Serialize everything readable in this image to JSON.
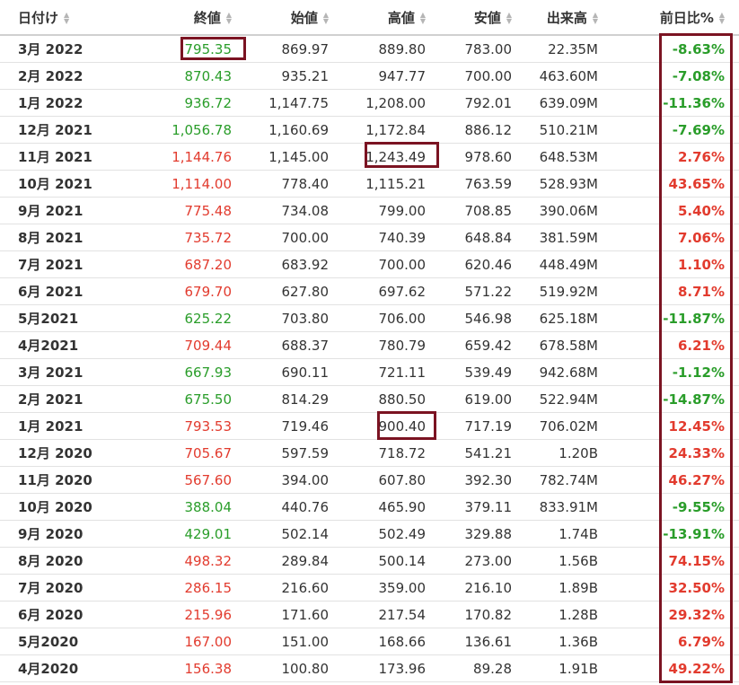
{
  "headers": [
    {
      "label": "日付け"
    },
    {
      "label": "終値"
    },
    {
      "label": "始値"
    },
    {
      "label": "高値"
    },
    {
      "label": "安値"
    },
    {
      "label": "出来高"
    },
    {
      "label": "前日比%"
    }
  ],
  "rows": [
    {
      "date": "3月 2022",
      "close": "795.35",
      "close_color": "green",
      "open": "869.97",
      "high": "889.80",
      "low": "783.00",
      "volume": "22.35M",
      "change": "-8.63%",
      "change_color": "green"
    },
    {
      "date": "2月 2022",
      "close": "870.43",
      "close_color": "green",
      "open": "935.21",
      "high": "947.77",
      "low": "700.00",
      "volume": "463.60M",
      "change": "-7.08%",
      "change_color": "green"
    },
    {
      "date": "1月 2022",
      "close": "936.72",
      "close_color": "green",
      "open": "1,147.75",
      "high": "1,208.00",
      "low": "792.01",
      "volume": "639.09M",
      "change": "-11.36%",
      "change_color": "green"
    },
    {
      "date": "12月 2021",
      "close": "1,056.78",
      "close_color": "green",
      "open": "1,160.69",
      "high": "1,172.84",
      "low": "886.12",
      "volume": "510.21M",
      "change": "-7.69%",
      "change_color": "green"
    },
    {
      "date": "11月 2021",
      "close": "1,144.76",
      "close_color": "red",
      "open": "1,145.00",
      "high": "1,243.49",
      "low": "978.60",
      "volume": "648.53M",
      "change": "2.76%",
      "change_color": "red"
    },
    {
      "date": "10月 2021",
      "close": "1,114.00",
      "close_color": "red",
      "open": "778.40",
      "high": "1,115.21",
      "low": "763.59",
      "volume": "528.93M",
      "change": "43.65%",
      "change_color": "red"
    },
    {
      "date": "9月 2021",
      "close": "775.48",
      "close_color": "red",
      "open": "734.08",
      "high": "799.00",
      "low": "708.85",
      "volume": "390.06M",
      "change": "5.40%",
      "change_color": "red"
    },
    {
      "date": "8月 2021",
      "close": "735.72",
      "close_color": "red",
      "open": "700.00",
      "high": "740.39",
      "low": "648.84",
      "volume": "381.59M",
      "change": "7.06%",
      "change_color": "red"
    },
    {
      "date": "7月 2021",
      "close": "687.20",
      "close_color": "red",
      "open": "683.92",
      "high": "700.00",
      "low": "620.46",
      "volume": "448.49M",
      "change": "1.10%",
      "change_color": "red"
    },
    {
      "date": "6月 2021",
      "close": "679.70",
      "close_color": "red",
      "open": "627.80",
      "high": "697.62",
      "low": "571.22",
      "volume": "519.92M",
      "change": "8.71%",
      "change_color": "red"
    },
    {
      "date": "5月2021",
      "close": "625.22",
      "close_color": "green",
      "open": "703.80",
      "high": "706.00",
      "low": "546.98",
      "volume": "625.18M",
      "change": "-11.87%",
      "change_color": "green"
    },
    {
      "date": "4月2021",
      "close": "709.44",
      "close_color": "red",
      "open": "688.37",
      "high": "780.79",
      "low": "659.42",
      "volume": "678.58M",
      "change": "6.21%",
      "change_color": "red"
    },
    {
      "date": "3月 2021",
      "close": "667.93",
      "close_color": "green",
      "open": "690.11",
      "high": "721.11",
      "low": "539.49",
      "volume": "942.68M",
      "change": "-1.12%",
      "change_color": "green"
    },
    {
      "date": "2月 2021",
      "close": "675.50",
      "close_color": "green",
      "open": "814.29",
      "high": "880.50",
      "low": "619.00",
      "volume": "522.94M",
      "change": "-14.87%",
      "change_color": "green"
    },
    {
      "date": "1月 2021",
      "close": "793.53",
      "close_color": "red",
      "open": "719.46",
      "high": "900.40",
      "low": "717.19",
      "volume": "706.02M",
      "change": "12.45%",
      "change_color": "red"
    },
    {
      "date": "12月 2020",
      "close": "705.67",
      "close_color": "red",
      "open": "597.59",
      "high": "718.72",
      "low": "541.21",
      "volume": "1.20B",
      "change": "24.33%",
      "change_color": "red"
    },
    {
      "date": "11月 2020",
      "close": "567.60",
      "close_color": "red",
      "open": "394.00",
      "high": "607.80",
      "low": "392.30",
      "volume": "782.74M",
      "change": "46.27%",
      "change_color": "red"
    },
    {
      "date": "10月 2020",
      "close": "388.04",
      "close_color": "green",
      "open": "440.76",
      "high": "465.90",
      "low": "379.11",
      "volume": "833.91M",
      "change": "-9.55%",
      "change_color": "green"
    },
    {
      "date": "9月 2020",
      "close": "429.01",
      "close_color": "green",
      "open": "502.14",
      "high": "502.49",
      "low": "329.88",
      "volume": "1.74B",
      "change": "-13.91%",
      "change_color": "green"
    },
    {
      "date": "8月 2020",
      "close": "498.32",
      "close_color": "red",
      "open": "289.84",
      "high": "500.14",
      "low": "273.00",
      "volume": "1.56B",
      "change": "74.15%",
      "change_color": "red"
    },
    {
      "date": "7月 2020",
      "close": "286.15",
      "close_color": "red",
      "open": "216.60",
      "high": "359.00",
      "low": "216.10",
      "volume": "1.89B",
      "change": "32.50%",
      "change_color": "red"
    },
    {
      "date": "6月 2020",
      "close": "215.96",
      "close_color": "red",
      "open": "171.60",
      "high": "217.54",
      "low": "170.82",
      "volume": "1.28B",
      "change": "29.32%",
      "change_color": "red"
    },
    {
      "date": "5月2020",
      "close": "167.00",
      "close_color": "red",
      "open": "151.00",
      "high": "168.66",
      "low": "136.61",
      "volume": "1.36B",
      "change": "6.79%",
      "change_color": "red"
    },
    {
      "date": "4月2020",
      "close": "156.38",
      "close_color": "red",
      "open": "100.80",
      "high": "173.96",
      "low": "89.28",
      "volume": "1.91B",
      "change": "49.22%",
      "change_color": "red"
    }
  ],
  "colors": {
    "green": "#2a9d2a",
    "red": "#e23b2e",
    "highlight_border": "#7b1322",
    "sort_icon": "#b5b5b5"
  },
  "highlights": [
    {
      "target": "close",
      "row": "3月 2022"
    },
    {
      "target": "high",
      "row": "11月 2021"
    },
    {
      "target": "high",
      "row": "1月 2021"
    },
    {
      "target": "change-column",
      "row": "all"
    }
  ]
}
